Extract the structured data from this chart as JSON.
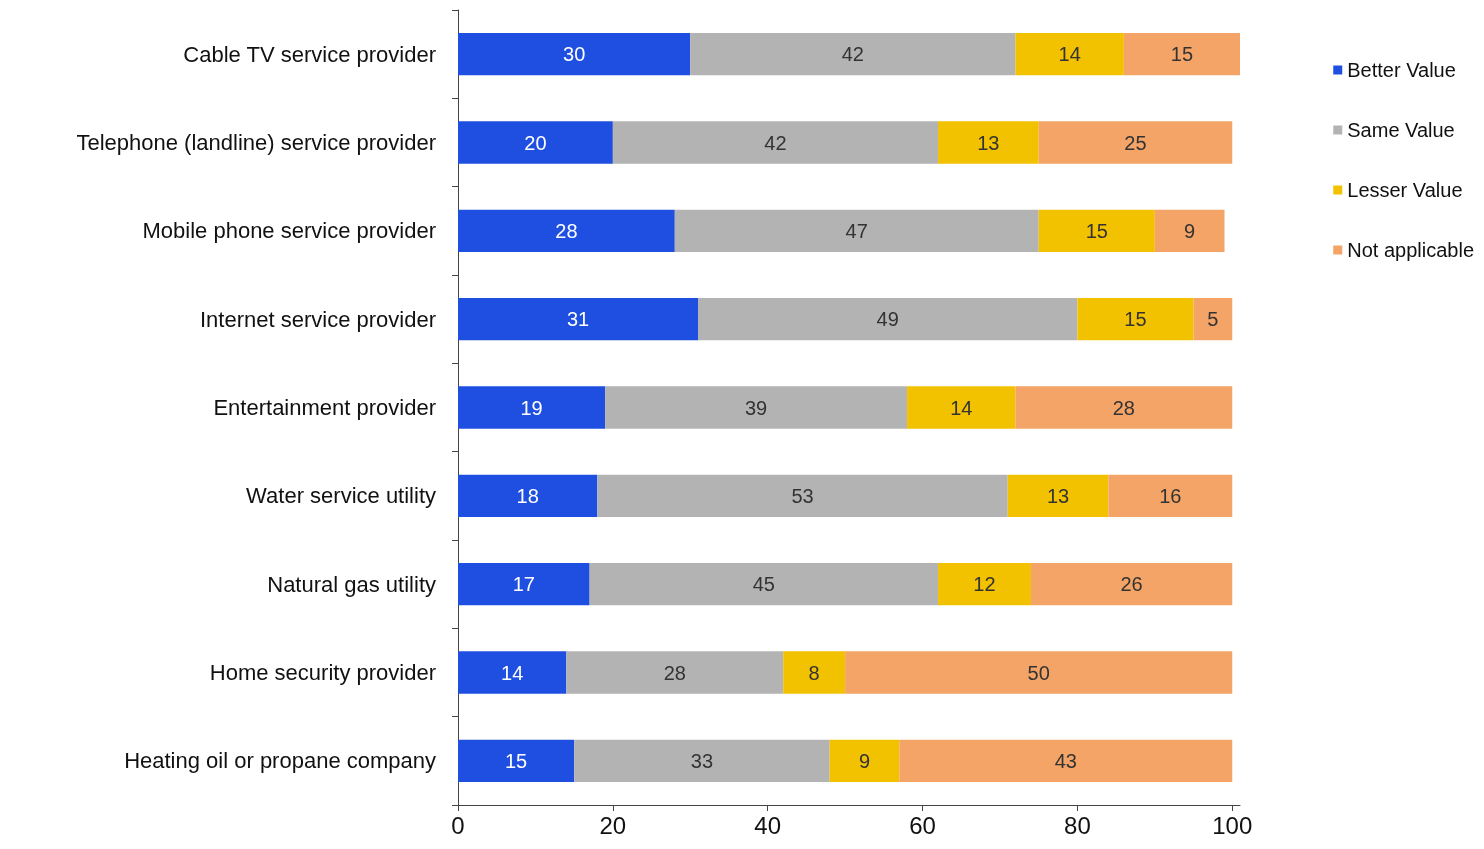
{
  "chart_data": {
    "type": "bar",
    "orientation": "horizontal",
    "stacked": true,
    "data_labels": true,
    "grid": false,
    "legend": "right",
    "categories": [
      "Cable TV service provider",
      "Telephone (landline) service provider",
      "Mobile phone service provider",
      "Internet service provider",
      "Entertainment provider",
      "Water service utility",
      "Natural gas utility",
      "Home security provider",
      "Heating oil or propane company"
    ],
    "series": [
      {
        "name": "Better Value",
        "color": "#1f4fe0",
        "values": [
          30,
          20,
          28,
          31,
          19,
          18,
          17,
          14,
          15
        ]
      },
      {
        "name": "Same Value",
        "color": "#b3b3b3",
        "values": [
          42,
          42,
          47,
          49,
          39,
          53,
          45,
          28,
          33
        ]
      },
      {
        "name": "Lesser Value",
        "color": "#f2c200",
        "values": [
          14,
          13,
          15,
          15,
          14,
          13,
          12,
          8,
          9
        ]
      },
      {
        "name": "Not applicable",
        "color": "#f3a466",
        "values": [
          15,
          25,
          9,
          5,
          28,
          16,
          26,
          50,
          43
        ]
      }
    ],
    "xlim": [
      0,
      101
    ],
    "xticks": [
      0,
      20,
      40,
      60,
      80,
      100
    ]
  }
}
